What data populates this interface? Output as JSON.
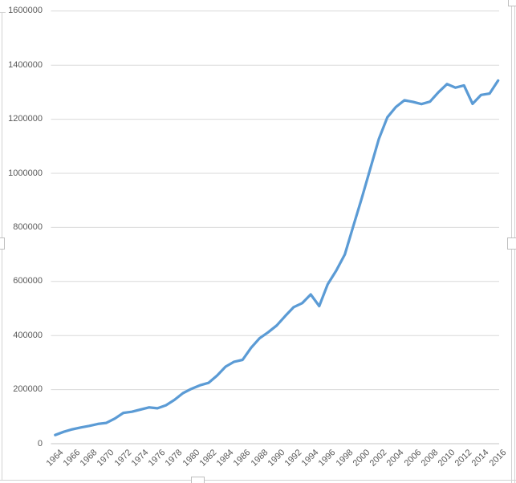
{
  "chart_data": {
    "type": "line",
    "title": "",
    "x": [
      1964,
      1965,
      1966,
      1967,
      1968,
      1969,
      1970,
      1971,
      1972,
      1973,
      1974,
      1975,
      1976,
      1977,
      1978,
      1979,
      1980,
      1981,
      1982,
      1983,
      1984,
      1985,
      1986,
      1987,
      1988,
      1989,
      1990,
      1991,
      1992,
      1993,
      1994,
      1995,
      1996,
      1997,
      1998,
      1999,
      2000,
      2001,
      2002,
      2003,
      2004,
      2005,
      2006,
      2007,
      2008,
      2009,
      2010,
      2011,
      2012,
      2013,
      2014,
      2015,
      2016
    ],
    "series": [
      {
        "name": "",
        "color": "#5B9BD5",
        "values": [
          32000,
          44000,
          53000,
          60000,
          66000,
          73000,
          77000,
          93000,
          114000,
          118000,
          126000,
          134000,
          131000,
          142000,
          162000,
          187000,
          203000,
          216000,
          225000,
          252000,
          285000,
          303000,
          310000,
          355000,
          390000,
          412000,
          437000,
          472000,
          505000,
          520000,
          552000,
          509000,
          590000,
          640000,
          700000,
          805000,
          909000,
          1018000,
          1127000,
          1207000,
          1245000,
          1270000,
          1264000,
          1256000,
          1265000,
          1300000,
          1330000,
          1317000,
          1325000,
          1257000,
          1290000,
          1295000,
          1343000
        ]
      }
    ],
    "ylim": [
      0,
      1600000
    ],
    "ytick_interval": 200000,
    "y_tick_labels": [
      "0",
      "200000",
      "400000",
      "600000",
      "800000",
      "1000000",
      "1200000",
      "1400000",
      "1600000"
    ],
    "x_tick_labels": [
      "1964",
      "1966",
      "1968",
      "1970",
      "1972",
      "1974",
      "1976",
      "1978",
      "1980",
      "1982",
      "1984",
      "1986",
      "1988",
      "1990",
      "1992",
      "1994",
      "1996",
      "1998",
      "2000",
      "2002",
      "2004",
      "2006",
      "2008",
      "2010",
      "2012",
      "2014",
      "2016"
    ],
    "grid": true,
    "legend": "none",
    "xlabel": "",
    "ylabel": ""
  },
  "colors": {
    "line": "#5B9BD5",
    "gridline": "#D9D9D9",
    "axis_line": "#C6C6C6",
    "tick_text": "#595959",
    "frame": "#D2D2D2",
    "background": "#FFFFFF"
  }
}
